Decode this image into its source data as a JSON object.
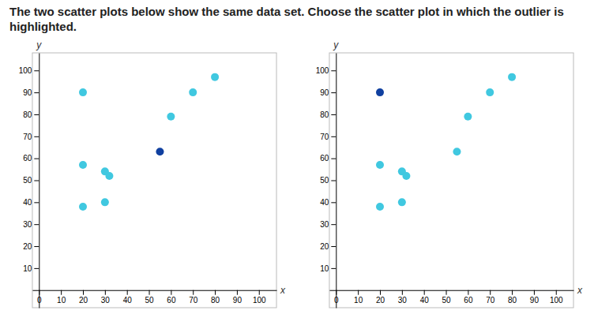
{
  "chart_data": [
    {
      "type": "scatter",
      "title": "The two scatter plots below show the same data set. Choose the scatter plot in which the outlier is highlighted.",
      "x": [
        20,
        20,
        20,
        30,
        32,
        30,
        55,
        60,
        70,
        80
      ],
      "values": [
        90,
        38,
        57,
        54,
        52,
        40,
        63,
        79,
        90,
        97
      ],
      "colors": [
        "#40C8E0",
        "#40C8E0",
        "#40C8E0",
        "#40C8E0",
        "#40C8E0",
        "#40C8E0",
        "#1040A0",
        "#40C8E0",
        "#40C8E0",
        "#40C8E0"
      ],
      "xlabel": "x",
      "ylabel": "y",
      "xlim": [
        -3,
        108
      ],
      "ylim": [
        -8,
        108
      ],
      "xticks": [
        0,
        10,
        20,
        30,
        40,
        50,
        60,
        70,
        80,
        90,
        100
      ],
      "yticks": [
        10,
        20,
        30,
        40,
        50,
        60,
        70,
        80,
        90,
        100
      ],
      "grid": false
    },
    {
      "type": "scatter",
      "x": [
        20,
        20,
        20,
        30,
        32,
        30,
        55,
        60,
        70,
        80
      ],
      "values": [
        90,
        38,
        57,
        54,
        52,
        40,
        63,
        79,
        90,
        97
      ],
      "colors": [
        "#1040A0",
        "#40C8E0",
        "#40C8E0",
        "#40C8E0",
        "#40C8E0",
        "#40C8E0",
        "#40C8E0",
        "#40C8E0",
        "#40C8E0",
        "#40C8E0"
      ],
      "xlabel": "x",
      "ylabel": "y",
      "xlim": [
        -3,
        108
      ],
      "ylim": [
        -8,
        108
      ],
      "xticks": [
        0,
        10,
        20,
        30,
        40,
        50,
        60,
        70,
        80,
        90,
        100
      ],
      "yticks": [
        10,
        20,
        30,
        40,
        50,
        60,
        70,
        80,
        90,
        100
      ],
      "grid": false
    }
  ]
}
